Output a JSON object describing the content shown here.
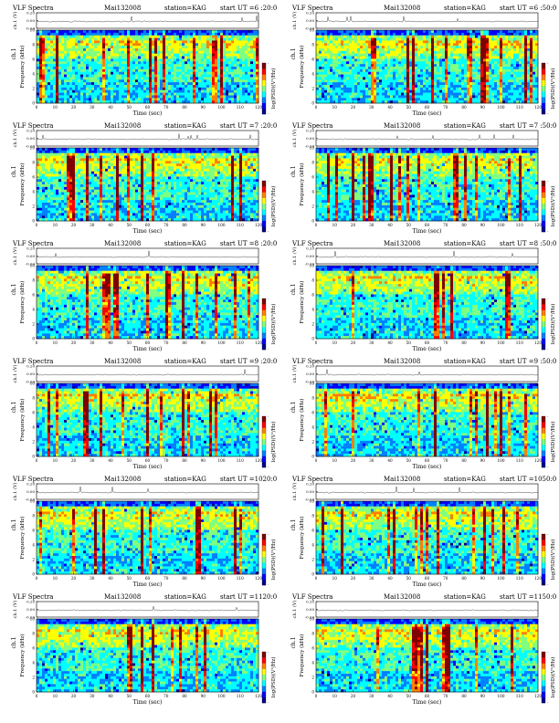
{
  "figure": {
    "title_prefix": "VLF Spectra",
    "date": "Mai132008",
    "station": "station=KAG",
    "ut_prefix": "start  UT  ="
  },
  "colors": {
    "ramp": [
      "#00008f",
      "#0000ff",
      "#0080ff",
      "#00ffff",
      "#80ff80",
      "#ffff00",
      "#ff8000",
      "#ff0000",
      "#800000"
    ]
  },
  "panels": [
    {
      "start": "6 :20:0"
    },
    {
      "start": "6 :50:0"
    },
    {
      "start": "7 :20:0"
    },
    {
      "start": "7 :50:0"
    },
    {
      "start": "8 :20:0"
    },
    {
      "start": "8 :50:0"
    },
    {
      "start": "9 :20:0"
    },
    {
      "start": "9 :50:0"
    },
    {
      "start": "1020:0"
    },
    {
      "start": "1050:0"
    },
    {
      "start": "1120:0"
    },
    {
      "start": "1150:0"
    }
  ],
  "chart_data": {
    "type": "heatmap",
    "panel_count": 12,
    "top_strip": {
      "ylabel": "ch.1 (V)",
      "yticks": [
        "0.20",
        "0.00",
        "-0.20"
      ],
      "ylim": [
        -0.2,
        0.2
      ]
    },
    "spectrogram": {
      "ylabel": "Frequency  (kHz)",
      "channel_label": "ch.1",
      "yticks": [
        0,
        2,
        4,
        6,
        8,
        10
      ],
      "ylim": [
        0,
        10
      ],
      "xlabel": "Time  (sec)",
      "xticks": [
        0,
        10,
        20,
        30,
        40,
        50,
        60,
        70,
        80,
        90,
        100,
        110,
        120
      ],
      "xlim": [
        0,
        120
      ]
    },
    "colorbar": {
      "label": "log(PSD)(V²/Hz)",
      "tick_marks": [
        "-",
        "-"
      ]
    }
  }
}
